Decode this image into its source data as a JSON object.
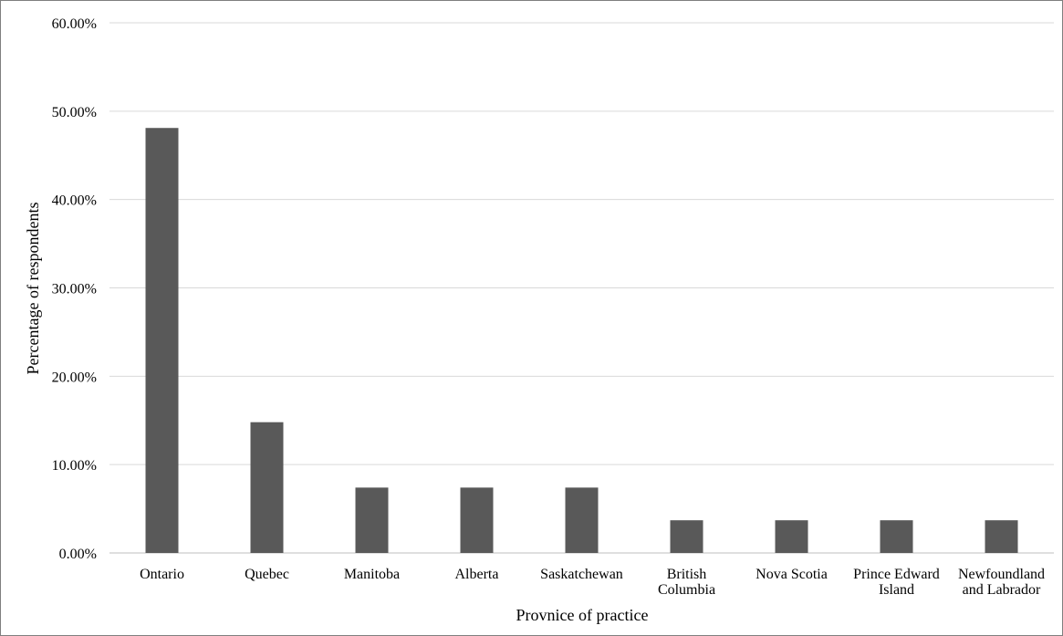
{
  "chart_data": {
    "type": "bar",
    "categories": [
      [
        "Ontario"
      ],
      [
        "Quebec"
      ],
      [
        "Manitoba"
      ],
      [
        "Alberta"
      ],
      [
        "Saskatchewan"
      ],
      [
        "British",
        "Columbia"
      ],
      [
        "Nova Scotia"
      ],
      [
        "Prince Edward",
        "Island"
      ],
      [
        "Newfoundland",
        "and Labrador"
      ]
    ],
    "values": [
      48.1,
      14.8,
      7.4,
      7.4,
      7.4,
      3.7,
      3.7,
      3.7,
      3.7
    ],
    "y_ticks": [
      "0.00%",
      "10.00%",
      "20.00%",
      "30.00%",
      "40.00%",
      "50.00%",
      "60.00%"
    ],
    "ylim": [
      0,
      60
    ],
    "xlabel": "Provnice of practice",
    "ylabel": "Percentage of respondents",
    "grid": true,
    "bar_color": "#595959",
    "grid_color": "#d9d9d9"
  }
}
